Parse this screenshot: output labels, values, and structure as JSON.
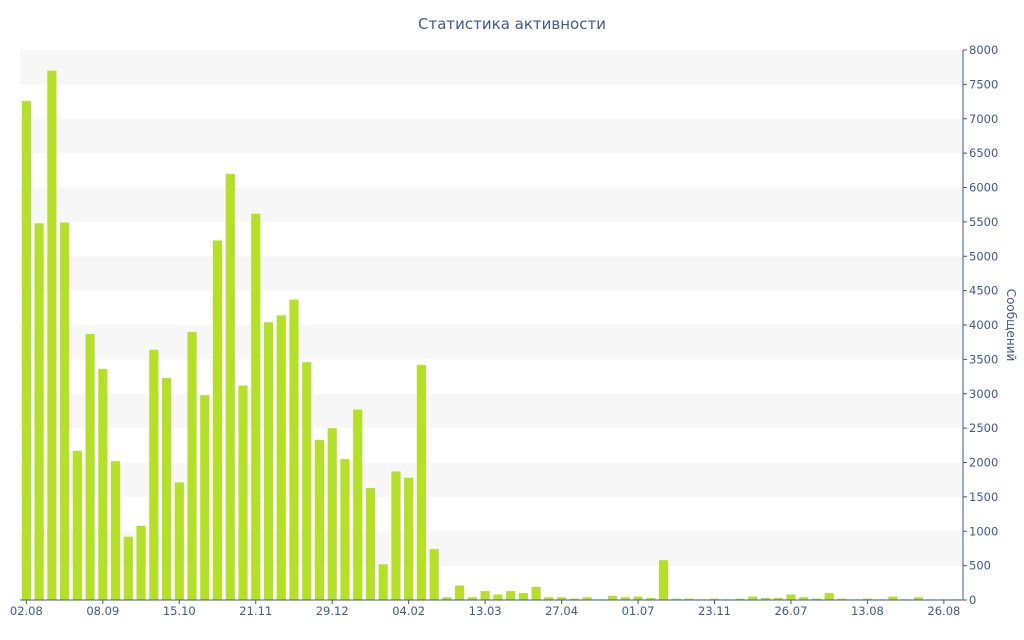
{
  "chart_data": {
    "type": "bar",
    "title": "Статистика активности",
    "xlabel": "",
    "ylabel": "Сообщений",
    "ylim": [
      0,
      8000
    ],
    "y_ticks": [
      0,
      500,
      1000,
      1500,
      2000,
      2500,
      3000,
      3500,
      4000,
      4500,
      5000,
      5500,
      6000,
      6500,
      7000,
      7500,
      8000
    ],
    "x_tick_labels": [
      {
        "index": 0,
        "label": "02.08"
      },
      {
        "index": 6,
        "label": "08.09"
      },
      {
        "index": 12,
        "label": "15.10"
      },
      {
        "index": 18,
        "label": "21.11"
      },
      {
        "index": 24,
        "label": "29.12"
      },
      {
        "index": 30,
        "label": "04.02"
      },
      {
        "index": 36,
        "label": "13.03"
      },
      {
        "index": 42,
        "label": "27.04"
      },
      {
        "index": 48,
        "label": "01.07"
      },
      {
        "index": 54,
        "label": "23.11"
      },
      {
        "index": 60,
        "label": "26.07"
      },
      {
        "index": 66,
        "label": "13.08"
      },
      {
        "index": 72,
        "label": "26.08"
      }
    ],
    "bar_color": "#b5e02a",
    "grid": "horizontal bands",
    "y_axis_position": "right",
    "values": [
      7260,
      5480,
      7700,
      5490,
      2170,
      3870,
      3360,
      2020,
      920,
      1080,
      3640,
      3230,
      1710,
      3900,
      2980,
      5230,
      6200,
      3120,
      5620,
      4040,
      4140,
      4370,
      3460,
      2330,
      2500,
      2050,
      2770,
      1630,
      520,
      1870,
      1780,
      3420,
      740,
      40,
      210,
      40,
      130,
      80,
      130,
      100,
      190,
      40,
      40,
      20,
      40,
      10,
      60,
      40,
      50,
      30,
      580,
      20,
      20,
      10,
      20,
      10,
      20,
      50,
      30,
      30,
      80,
      40,
      20,
      100,
      20,
      10,
      20,
      10,
      50,
      10,
      40,
      10,
      10,
      10
    ]
  }
}
